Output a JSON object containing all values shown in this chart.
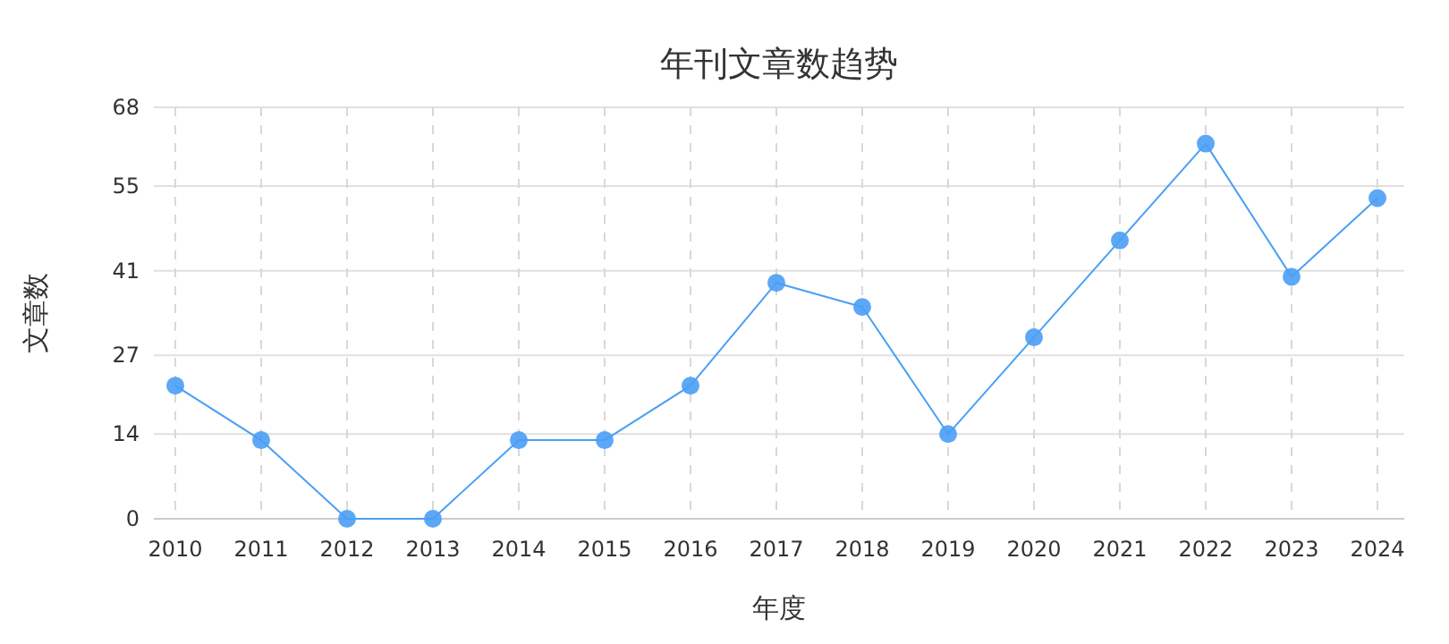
{
  "chart_data": {
    "type": "line",
    "title": "年刊文章数趋势",
    "xlabel": "年度",
    "ylabel": "文章数",
    "categories": [
      "2010",
      "2011",
      "2012",
      "2013",
      "2014",
      "2015",
      "2016",
      "2017",
      "2018",
      "2019",
      "2020",
      "2021",
      "2022",
      "2023",
      "2024"
    ],
    "series": [
      {
        "color": "#4a9ff5",
        "values": [
          22,
          13,
          0,
          0,
          13,
          13,
          22,
          39,
          35,
          14,
          30,
          46,
          62,
          40,
          53
        ]
      }
    ],
    "ylim": [
      0,
      68
    ],
    "yticks": [
      0,
      14,
      27,
      41,
      55,
      68
    ],
    "grid": true,
    "marker": "circle",
    "line_style": "solid"
  }
}
